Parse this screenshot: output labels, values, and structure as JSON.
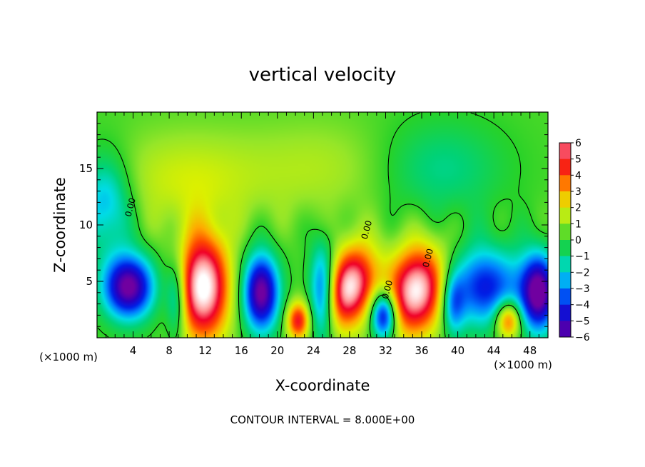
{
  "chart_data": {
    "type": "heatmap",
    "title": "vertical velocity",
    "xlabel": "X-coordinate",
    "ylabel": "Z-coordinate",
    "x_unit": "(×1000 m)",
    "x_unit_right": "(×1000 m)",
    "xlim": [
      0,
      50
    ],
    "ylim": [
      0,
      20
    ],
    "x_ticks": [
      4,
      8,
      12,
      16,
      20,
      24,
      28,
      32,
      36,
      40,
      44,
      48
    ],
    "y_ticks": [
      5,
      10,
      15
    ],
    "colorbar_min": -6,
    "colorbar_max": 6,
    "colorbar_ticks": [
      6,
      5,
      4,
      3,
      2,
      1,
      0,
      -1,
      -2,
      -3,
      -4,
      -5,
      -6
    ],
    "colorbar_labels": [
      "6",
      "5",
      "4",
      "3",
      "2",
      "1",
      "0",
      "−1",
      "−2",
      "−3",
      "−4",
      "−5",
      "−6"
    ],
    "contour_label": "0.00",
    "footnote": "CONTOUR INTERVAL = 8.000E+00",
    "features": [
      {
        "x": 11.8,
        "z": 4.5,
        "w": 7.0,
        "a": 7.0,
        "sx": 2.0,
        "sz": 3.3,
        "tilt": 0.0
      },
      {
        "x": 28.0,
        "z": 4.5,
        "w": 6.5,
        "a": 6.5,
        "sx": 1.8,
        "sz": 2.6,
        "tilt": 0.35
      },
      {
        "x": 35.5,
        "z": 4.2,
        "w": 6.8,
        "a": 6.8,
        "sx": 2.3,
        "sz": 2.8,
        "tilt": 0.4
      },
      {
        "x": 22.3,
        "z": 1.5,
        "w": 4.5,
        "a": 4.5,
        "sx": 0.9,
        "sz": 1.2,
        "tilt": 0.0
      },
      {
        "x": 45.6,
        "z": 1.6,
        "w": 4.5,
        "a": 4.5,
        "sx": 1.0,
        "sz": 1.2,
        "tilt": 0.0
      },
      {
        "x": 3.5,
        "z": 4.5,
        "w": -6.5,
        "a": 6.5,
        "sx": 2.0,
        "sz": 2.0,
        "tilt": -0.4
      },
      {
        "x": 18.2,
        "z": 4.0,
        "w": -6.5,
        "a": 6.5,
        "sx": 1.4,
        "sz": 2.4,
        "tilt": 0.0
      },
      {
        "x": 31.8,
        "z": 2.0,
        "w": -6.0,
        "a": 6.0,
        "sx": 1.0,
        "sz": 1.5,
        "tilt": 0.0
      },
      {
        "x": 49.0,
        "z": 4.0,
        "w": -6.5,
        "a": 6.5,
        "sx": 1.4,
        "sz": 2.4,
        "tilt": 0.0
      },
      {
        "x": 25.0,
        "z": 4.0,
        "w": -4.5,
        "a": 4.5,
        "sx": 1.0,
        "sz": 3.0,
        "tilt": 0.0
      },
      {
        "x": 43.0,
        "z": 4.5,
        "w": -4.5,
        "a": 4.5,
        "sx": 3.0,
        "sz": 2.5,
        "tilt": 0.0
      },
      {
        "x": 8.8,
        "z": 3.5,
        "w": -3.0,
        "a": 3.0,
        "sx": 0.8,
        "sz": 2.5,
        "tilt": 0.0
      },
      {
        "x": 39.5,
        "z": 3.0,
        "w": -3.0,
        "a": 3.0,
        "sx": 0.9,
        "sz": 2.0,
        "tilt": 0.0
      },
      {
        "x": 1.0,
        "z": 12.0,
        "w": -3.0,
        "a": 3.0,
        "sx": 2.0,
        "sz": 3.0,
        "tilt": 0.0
      },
      {
        "x": 38.0,
        "z": 15.0,
        "w": -1.5,
        "a": 1.5,
        "sx": 5.0,
        "sz": 3.0,
        "tilt": 0.0
      },
      {
        "x": 10.0,
        "z": 14.0,
        "w": 1.5,
        "a": 1.5,
        "sx": 6.0,
        "sz": 3.0,
        "tilt": 0.0
      },
      {
        "x": 25.0,
        "z": 15.0,
        "w": 1.0,
        "a": 1.0,
        "sx": 6.0,
        "sz": 3.0,
        "tilt": 0.0
      }
    ]
  }
}
